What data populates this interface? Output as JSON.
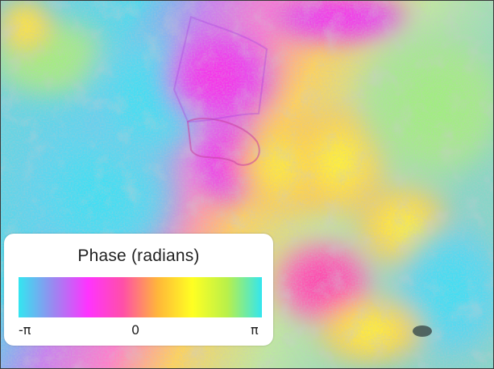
{
  "legend": {
    "title": "Phase (radians)",
    "ticks": {
      "min": "-π",
      "mid": "0",
      "max": "π"
    },
    "colormap_stops": [
      "#33e6f0",
      "#9a88f0",
      "#ff33ff",
      "#ff4fa8",
      "#ffb63a",
      "#ffff22",
      "#b9f04a",
      "#33e6ef"
    ]
  }
}
